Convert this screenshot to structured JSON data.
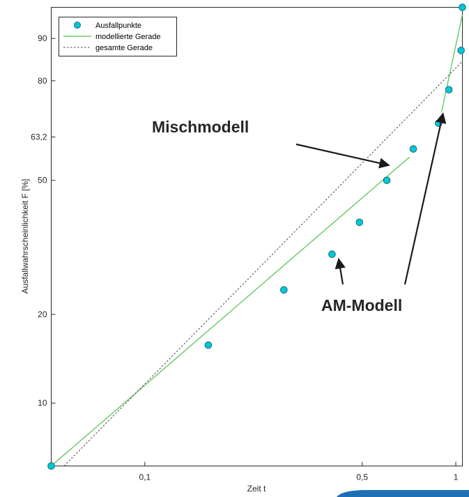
{
  "chart_data": {
    "type": "scatter",
    "xlabel": "Zeit t",
    "ylabel": "Ausfallwahrscheinlichkeit F [%]",
    "x_scale": "log",
    "y_scale": "weibull",
    "xlim": [
      0.05,
      1.05
    ],
    "ylim": [
      6.0,
      95.0
    ],
    "x_ticks": [
      {
        "value": 0.1,
        "label": "0,1"
      },
      {
        "value": 0.5,
        "label": "0,5"
      },
      {
        "value": 1,
        "label": "1"
      }
    ],
    "y_ticks": [
      {
        "value": 10,
        "label": "10"
      },
      {
        "value": 20,
        "label": "20"
      },
      {
        "value": 50,
        "label": "50"
      },
      {
        "value": 63.2,
        "label": "63,2"
      },
      {
        "value": 80,
        "label": "80"
      },
      {
        "value": 90,
        "label": "90"
      }
    ],
    "grid": false,
    "legend_position": "top-left",
    "series": [
      {
        "name": "Ausfallpunkte",
        "kind": "points",
        "color": "#00c8d8",
        "x": [
          0.05,
          0.16,
          0.28,
          0.4,
          0.49,
          0.6,
          0.73,
          0.88,
          0.95,
          1.04,
          1.05
        ],
        "y": [
          6.0,
          15.8,
          24.0,
          31.0,
          38.5,
          50.0,
          59.5,
          67.5,
          77.5,
          87.5,
          95.0
        ]
      },
      {
        "name": "modellierte Gerade",
        "kind": "line",
        "color": "#4cc24c",
        "segments": [
          {
            "x": [
              0.05,
              0.71
            ],
            "y": [
              6.0,
              57.0
            ]
          },
          {
            "x": [
              0.9,
              1.05
            ],
            "y": [
              71.0,
              94.0
            ]
          }
        ]
      },
      {
        "name": "gesamte Gerade",
        "kind": "dashed",
        "color": "#444444",
        "x": [
          0.055,
          1.05
        ],
        "y": [
          6.0,
          85.0
        ]
      }
    ],
    "annotations": [
      {
        "text": "Mischmodell",
        "arrow_to": {
          "x": 0.61,
          "y": 54.5
        }
      },
      {
        "text": "AM-Modell",
        "arrow_to": [
          {
            "x": 0.42,
            "y": 30.0
          },
          {
            "x": 0.91,
            "y": 70.5
          }
        ]
      }
    ]
  }
}
